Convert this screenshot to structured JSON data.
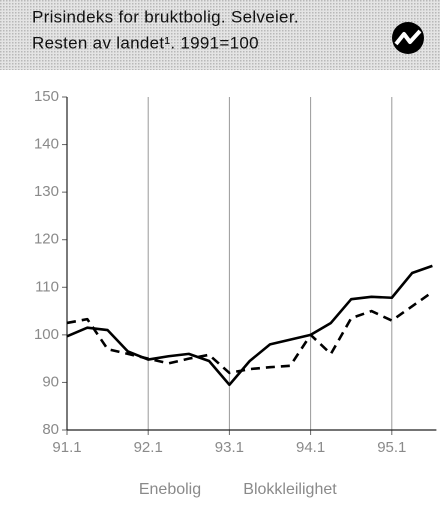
{
  "chart_data": {
    "type": "line",
    "title": "Prisindeks for bruktbolig. Selveier.",
    "subtitle": "Resten av landet¹. 1991=100",
    "categories": [
      "91.1",
      null,
      null,
      null,
      "92.1",
      null,
      null,
      null,
      "93.1",
      null,
      null,
      null,
      "94.1",
      null,
      null,
      null,
      "95.1",
      null,
      null
    ],
    "series": [
      {
        "name": "Enebolig",
        "color": "#000000",
        "dash": "solid",
        "values": [
          99.7,
          101.5,
          101,
          96.5,
          94.8,
          95.5,
          96,
          94.5,
          89.5,
          94.5,
          98,
          99,
          100,
          102.5,
          107.5,
          108,
          107.8,
          113,
          114.5
        ]
      },
      {
        "name": "Blokkleilighet",
        "color": "#000000",
        "dash": "dashed",
        "values": [
          102.5,
          103.3,
          97,
          96,
          95,
          94,
          95,
          95.8,
          92,
          92.8,
          93.2,
          93.5,
          100,
          96,
          103.5,
          105,
          103,
          106,
          109
        ]
      }
    ],
    "ylim": [
      80,
      150
    ],
    "yticks": [
      80,
      90,
      100,
      110,
      120,
      130,
      140,
      150
    ],
    "grid": "x"
  }
}
